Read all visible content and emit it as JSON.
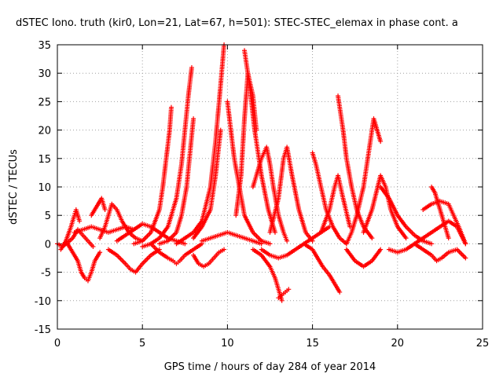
{
  "chart_data": {
    "type": "scatter",
    "title": "dSTEC Iono. truth (kir0, Lon=21, Lat=67, h=501): STEC-STEC_elemax in phase cont. a",
    "xlabel": "GPS time / hours of day 284 of year 2014",
    "ylabel": "dSTEC  / TECUs",
    "xlim": [
      0,
      25
    ],
    "ylim": [
      -15,
      35
    ],
    "xticks": [
      0,
      5,
      10,
      15,
      20,
      25
    ],
    "yticks": [
      -15,
      -10,
      -5,
      0,
      5,
      10,
      15,
      20,
      25,
      30,
      35
    ],
    "grid": true,
    "marker": "+",
    "color": "#ff0000",
    "series": [
      {
        "x": [
          0.0,
          0.3,
          0.6,
          0.9,
          1.2,
          1.5,
          1.8,
          2.1
        ],
        "y": [
          0.0,
          -0.5,
          0.2,
          1.0,
          2.5,
          1.5,
          0.5,
          -0.5
        ]
      },
      {
        "x": [
          0.2,
          0.5,
          0.8,
          1.0,
          1.1,
          1.3
        ],
        "y": [
          -1.0,
          0.5,
          3.0,
          5.0,
          6.0,
          4.0
        ]
      },
      {
        "x": [
          0.6,
          0.9,
          1.2,
          1.4,
          1.6,
          1.8,
          2.0,
          2.2,
          2.5
        ],
        "y": [
          0.0,
          -1.5,
          -3.0,
          -5.0,
          -6.0,
          -6.5,
          -5.0,
          -3.0,
          -1.5
        ]
      },
      {
        "x": [
          1.0,
          1.5,
          2.0,
          2.5,
          3.0,
          3.5,
          4.0,
          4.5
        ],
        "y": [
          2.0,
          2.5,
          3.0,
          2.5,
          2.0,
          2.5,
          3.0,
          2.5
        ]
      },
      {
        "x": [
          2.5,
          2.8,
          3.0,
          3.2,
          3.5,
          3.8,
          4.2,
          4.6,
          5.0
        ],
        "y": [
          1.0,
          3.0,
          5.0,
          7.0,
          6.0,
          4.0,
          2.0,
          1.0,
          0.5
        ]
      },
      {
        "x": [
          2.0,
          2.3,
          2.6,
          2.8
        ],
        "y": [
          5.0,
          6.5,
          8.0,
          6.0
        ]
      },
      {
        "x": [
          3.0,
          3.5,
          4.0,
          4.3,
          4.6,
          5.0,
          5.5,
          6.0
        ],
        "y": [
          -1.0,
          -2.0,
          -3.5,
          -4.5,
          -5.0,
          -3.5,
          -2.0,
          -1.0
        ]
      },
      {
        "x": [
          3.5,
          4.0,
          4.5,
          5.0,
          5.5,
          6.0,
          6.5,
          7.0,
          7.5
        ],
        "y": [
          0.5,
          1.5,
          2.5,
          3.5,
          3.0,
          2.0,
          1.0,
          0.5,
          0.0
        ]
      },
      {
        "x": [
          5.5,
          6.0,
          6.5,
          6.8,
          7.0,
          7.2,
          7.5,
          8.0,
          8.5
        ],
        "y": [
          0.0,
          -1.5,
          -2.5,
          -3.0,
          -3.5,
          -3.0,
          -2.0,
          -1.0,
          0.0
        ]
      },
      {
        "x": [
          4.5,
          5.0,
          5.5,
          6.0,
          6.2,
          6.4,
          6.6,
          6.7
        ],
        "y": [
          0.0,
          0.5,
          2.0,
          6.0,
          10.0,
          15.0,
          20.0,
          24.0
        ]
      },
      {
        "x": [
          5.0,
          5.5,
          6.0,
          6.5,
          7.0,
          7.3,
          7.5,
          7.7,
          7.9
        ],
        "y": [
          -0.5,
          0.0,
          1.0,
          3.0,
          8.0,
          14.0,
          20.0,
          26.0,
          31.0
        ]
      },
      {
        "x": [
          6.0,
          6.5,
          7.0,
          7.3,
          7.6,
          7.8,
          8.0
        ],
        "y": [
          0.0,
          0.5,
          2.0,
          5.0,
          10.0,
          16.0,
          22.0
        ]
      },
      {
        "x": [
          7.0,
          7.5,
          8.0,
          8.5,
          9.0,
          9.3,
          9.6,
          9.8
        ],
        "y": [
          0.0,
          1.0,
          2.0,
          4.0,
          10.0,
          18.0,
          28.0,
          35.0
        ]
      },
      {
        "x": [
          8.0,
          8.5,
          9.0,
          9.3,
          9.6
        ],
        "y": [
          1.0,
          3.0,
          6.0,
          12.0,
          20.0
        ]
      },
      {
        "x": [
          8.0,
          8.3,
          8.6,
          8.9,
          9.2,
          9.5,
          9.8
        ],
        "y": [
          -2.0,
          -3.5,
          -4.0,
          -3.5,
          -2.5,
          -1.5,
          -1.0
        ]
      },
      {
        "x": [
          8.5,
          9.0,
          9.5,
          10.0,
          10.5,
          11.0,
          11.5,
          12.0
        ],
        "y": [
          0.5,
          1.0,
          1.5,
          2.0,
          1.5,
          1.0,
          0.5,
          0.0
        ]
      },
      {
        "x": [
          10.0,
          10.2,
          10.4,
          10.7,
          11.0,
          11.5,
          12.0,
          12.5
        ],
        "y": [
          25.0,
          20.0,
          15.0,
          10.0,
          5.0,
          2.0,
          0.5,
          0.0
        ]
      },
      {
        "x": [
          10.5,
          10.8,
          11.0,
          11.2,
          11.5,
          11.7
        ],
        "y": [
          5.0,
          12.0,
          22.0,
          30.0,
          26.0,
          20.0
        ]
      },
      {
        "x": [
          11.0,
          11.3,
          11.6,
          12.0,
          12.4,
          12.8
        ],
        "y": [
          34.0,
          28.0,
          20.0,
          12.0,
          6.0,
          2.0
        ]
      },
      {
        "x": [
          11.5,
          12.0,
          12.3,
          12.5,
          12.7,
          13.0,
          13.3,
          13.5
        ],
        "y": [
          10.0,
          15.0,
          17.0,
          14.0,
          10.0,
          5.0,
          2.0,
          0.5
        ]
      },
      {
        "x": [
          11.5,
          12.0,
          12.5,
          12.8,
          13.0,
          13.2
        ],
        "y": [
          -1.0,
          -2.0,
          -4.0,
          -6.0,
          -8.0,
          -10.0
        ]
      },
      {
        "x": [
          13.0,
          13.2,
          13.4,
          13.6
        ],
        "y": [
          -9.5,
          -9.0,
          -8.5,
          -8.0
        ]
      },
      {
        "x": [
          12.5,
          13.0,
          13.3,
          13.5,
          13.8,
          14.2,
          14.6,
          15.0
        ],
        "y": [
          2.0,
          8.0,
          15.0,
          17.0,
          12.0,
          6.0,
          2.0,
          0.5
        ]
      },
      {
        "x": [
          12.0,
          12.5,
          13.0,
          13.5,
          14.0,
          14.5,
          15.0,
          15.5,
          16.0
        ],
        "y": [
          -1.0,
          -2.0,
          -2.5,
          -2.0,
          -1.0,
          0.0,
          1.0,
          2.0,
          3.0
        ]
      },
      {
        "x": [
          14.5,
          15.0,
          15.3,
          15.6,
          16.0,
          16.3,
          16.6
        ],
        "y": [
          0.0,
          -1.0,
          -2.5,
          -4.0,
          -5.5,
          -7.0,
          -8.5
        ]
      },
      {
        "x": [
          15.0,
          15.2,
          15.5,
          15.8,
          16.2,
          16.6,
          17.0
        ],
        "y": [
          16.0,
          14.0,
          10.0,
          6.0,
          3.0,
          1.0,
          0.0
        ]
      },
      {
        "x": [
          15.5,
          16.0,
          16.3,
          16.5,
          16.8,
          17.2
        ],
        "y": [
          2.0,
          6.0,
          10.0,
          12.0,
          8.0,
          3.0
        ]
      },
      {
        "x": [
          16.5,
          16.8,
          17.0,
          17.3,
          17.6,
          18.0,
          18.5
        ],
        "y": [
          26.0,
          20.0,
          15.0,
          10.0,
          6.0,
          3.0,
          1.0
        ]
      },
      {
        "x": [
          17.0,
          17.3,
          17.6,
          18.0,
          18.3,
          18.6,
          19.0
        ],
        "y": [
          0.0,
          2.0,
          5.0,
          10.0,
          16.0,
          22.0,
          18.0
        ]
      },
      {
        "x": [
          17.0,
          17.5,
          18.0,
          18.5,
          19.0
        ],
        "y": [
          -1.0,
          -3.0,
          -4.0,
          -3.0,
          -1.0
        ]
      },
      {
        "x": [
          18.0,
          18.5,
          19.0,
          19.3,
          19.6,
          20.0,
          20.5
        ],
        "y": [
          2.0,
          6.0,
          12.0,
          10.0,
          6.0,
          3.0,
          1.0
        ]
      },
      {
        "x": [
          19.0,
          19.5,
          20.0,
          20.5,
          21.0,
          21.5,
          22.0
        ],
        "y": [
          10.0,
          8.0,
          5.0,
          3.0,
          1.5,
          0.5,
          0.0
        ]
      },
      {
        "x": [
          19.5,
          20.0,
          20.5,
          21.0,
          21.5,
          22.0,
          22.5,
          23.0,
          23.5,
          24.0
        ],
        "y": [
          -1.0,
          -1.5,
          -1.0,
          0.0,
          1.0,
          2.0,
          3.0,
          4.0,
          3.0,
          0.0
        ]
      },
      {
        "x": [
          21.5,
          22.0,
          22.5,
          23.0,
          23.3,
          23.6,
          24.0
        ],
        "y": [
          6.0,
          7.0,
          7.5,
          7.0,
          5.0,
          3.0,
          0.0
        ]
      },
      {
        "x": [
          21.0,
          21.5,
          22.0,
          22.3,
          22.6,
          23.0,
          23.5,
          24.0
        ],
        "y": [
          0.0,
          -1.0,
          -2.0,
          -3.0,
          -2.5,
          -1.5,
          -1.0,
          -2.5
        ]
      },
      {
        "x": [
          22.0,
          22.2,
          22.5,
          22.8,
          23.0
        ],
        "y": [
          10.0,
          9.0,
          6.0,
          3.0,
          1.0
        ]
      }
    ]
  }
}
